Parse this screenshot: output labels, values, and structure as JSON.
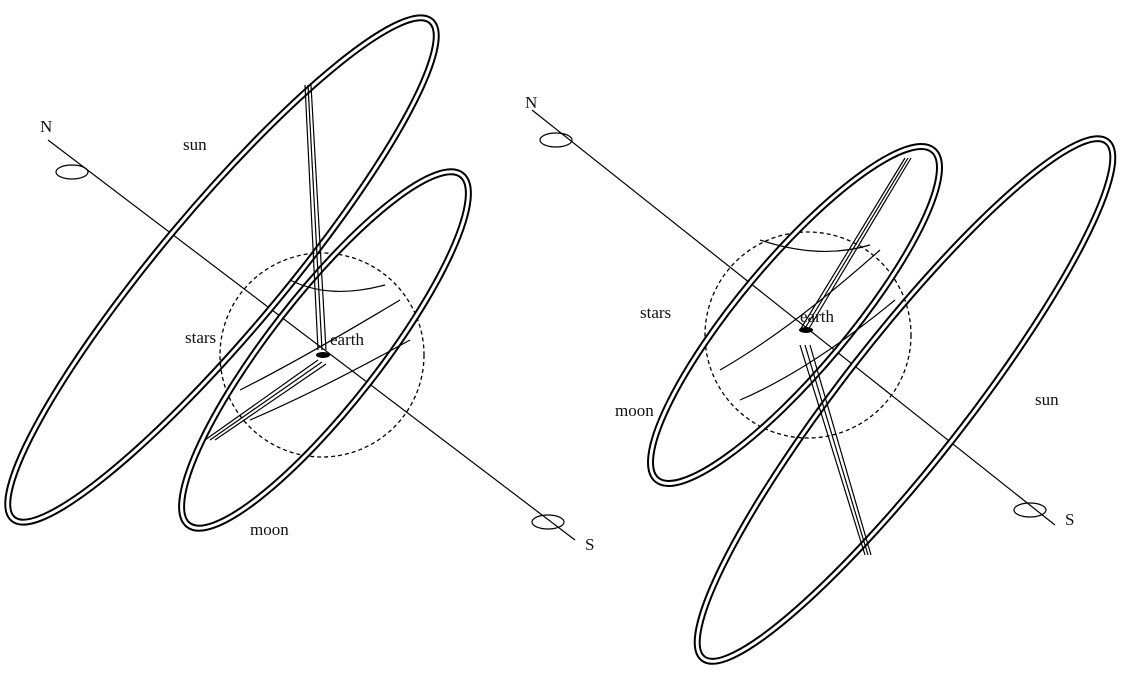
{
  "diagrams": [
    {
      "labels": {
        "north": "N",
        "south": "S",
        "sun": "sun",
        "moon": "moon",
        "stars": "stars",
        "earth": "earth"
      }
    },
    {
      "labels": {
        "north": "N",
        "south": "S",
        "sun": "sun",
        "moon": "moon",
        "stars": "stars",
        "earth": "earth"
      }
    }
  ]
}
